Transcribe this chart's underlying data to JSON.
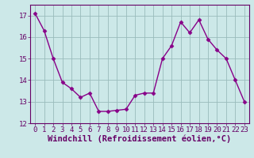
{
  "x": [
    0,
    1,
    2,
    3,
    4,
    5,
    6,
    7,
    8,
    9,
    10,
    11,
    12,
    13,
    14,
    15,
    16,
    17,
    18,
    19,
    20,
    21,
    22,
    23
  ],
  "y": [
    17.1,
    16.3,
    15.0,
    13.9,
    13.6,
    13.2,
    13.4,
    12.55,
    12.55,
    12.6,
    12.65,
    13.3,
    13.4,
    13.4,
    15.0,
    15.6,
    16.7,
    16.2,
    16.8,
    15.9,
    15.4,
    15.0,
    14.0,
    13.0
  ],
  "line_color": "#880088",
  "marker": "D",
  "markersize": 2.5,
  "linewidth": 1.0,
  "xlabel": "Windchill (Refroidissement éolien,°C)",
  "bg_color": "#cce8e8",
  "grid_color": "#99bbbb",
  "xlim": [
    -0.5,
    23.5
  ],
  "ylim": [
    12.0,
    17.5
  ],
  "yticks": [
    12,
    13,
    14,
    15,
    16,
    17
  ],
  "xticks": [
    0,
    1,
    2,
    3,
    4,
    5,
    6,
    7,
    8,
    9,
    10,
    11,
    12,
    13,
    14,
    15,
    16,
    17,
    18,
    19,
    20,
    21,
    22,
    23
  ],
  "tick_fontsize": 6.5,
  "xlabel_fontsize": 7.5,
  "axis_color": "#660066"
}
